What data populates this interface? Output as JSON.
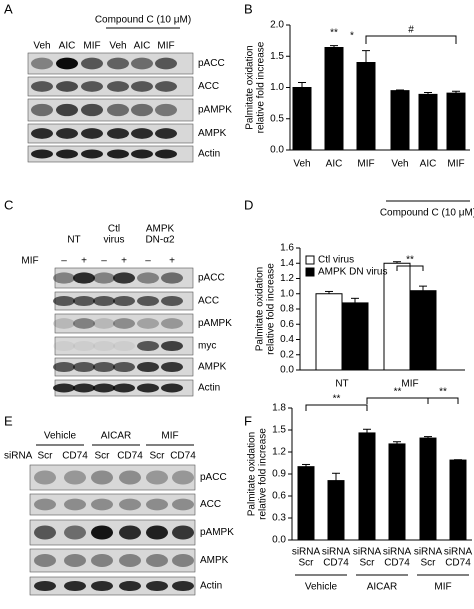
{
  "panel_labels": [
    "A",
    "B",
    "C",
    "D",
    "E",
    "F"
  ],
  "blot_A": {
    "lanes": [
      "Veh",
      "AIC",
      "MIF",
      "Veh",
      "AIC",
      "MIF"
    ],
    "group_label": "Compound C (10 μM)",
    "bands": [
      "pACC",
      "ACC",
      "pAMPK",
      "AMPK",
      "Actin"
    ]
  },
  "blot_C": {
    "headers": [
      [
        "NT"
      ],
      [
        "Ctl",
        "virus"
      ],
      [
        "AMPK",
        "DN-α2"
      ]
    ],
    "row_label": "MIF",
    "signs": [
      "–",
      "+",
      "–",
      "+",
      "–",
      "+"
    ],
    "bands": [
      "pACC",
      "ACC",
      "pAMPK",
      "myc",
      "AMPK",
      "Actin"
    ]
  },
  "blot_E": {
    "headers": [
      "Vehicle",
      "AICAR",
      "MIF"
    ],
    "row_label": "siRNA",
    "lanes": [
      "Scr",
      "CD74",
      "Scr",
      "CD74",
      "Scr",
      "CD74"
    ],
    "bands": [
      "pACC",
      "ACC",
      "pAMPK",
      "AMPK",
      "Actin"
    ]
  },
  "chart_data": [
    {
      "type": "bar",
      "y_label": [
        "Palmitate oxidation",
        "relative fold increase"
      ],
      "categories": [
        "Veh",
        "AIC",
        "MIF",
        "Veh",
        "AIC",
        "MIF"
      ],
      "values": [
        1.0,
        1.64,
        1.4,
        0.95,
        0.89,
        0.91
      ],
      "errors": [
        0.08,
        0.03,
        0.19,
        0.01,
        0.03,
        0.03
      ],
      "color": "#000000",
      "ylim": [
        0,
        2
      ],
      "yticks": [
        {
          "value": 0,
          "label": "0.0"
        },
        {
          "value": 0.5,
          "label": "0.5"
        },
        {
          "value": 1,
          "label": "1.0"
        },
        {
          "value": 1.5,
          "label": "1.5"
        },
        {
          "value": 2,
          "label": "2.0"
        }
      ],
      "group_label": "Compound C (10 μM)",
      "annotations": [
        "**",
        "*",
        "#"
      ]
    },
    {
      "type": "grouped_bar",
      "y_label": [
        "Palmitate oxidation",
        "relative fold increase"
      ],
      "categories": [
        "NT",
        "MIF"
      ],
      "series": [
        {
          "name": "Ctl virus",
          "color": "#ffffff",
          "values": [
            1.0,
            1.4
          ],
          "errors": [
            0.03,
            0.02
          ]
        },
        {
          "name": "AMPK DN virus",
          "color": "#000000",
          "values": [
            0.88,
            1.04
          ],
          "errors": [
            0.06,
            0.06
          ]
        }
      ],
      "ylim": [
        0,
        1.6
      ],
      "yticks": [
        {
          "value": 0,
          "label": "0.0"
        },
        {
          "value": 0.2,
          "label": "0.2"
        },
        {
          "value": 0.4,
          "label": "0.4"
        },
        {
          "value": 0.6,
          "label": "0.6"
        },
        {
          "value": 0.8,
          "label": "0.8"
        },
        {
          "value": 1,
          "label": "1.0"
        },
        {
          "value": 1.2,
          "label": "1.2"
        },
        {
          "value": 1.4,
          "label": "1.4"
        },
        {
          "value": 1.6,
          "label": "1.6"
        }
      ],
      "legend": "top-left",
      "annotations": [
        "**"
      ]
    },
    {
      "type": "bar",
      "y_label": [
        "Palmitate oxidation",
        "relative fold increase"
      ],
      "categories": [
        [
          "siRNA",
          "Scr"
        ],
        [
          "siRNA",
          "CD74"
        ],
        [
          "siRNA",
          "Scr"
        ],
        [
          "siRNA",
          "CD74"
        ],
        [
          "siRNA",
          "Scr"
        ],
        [
          "siRNA",
          "CD74"
        ]
      ],
      "values": [
        1.0,
        0.81,
        1.46,
        1.31,
        1.39,
        1.09
      ],
      "errors": [
        0.03,
        0.1,
        0.05,
        0.03,
        0.02,
        0.005
      ],
      "color": "#000000",
      "ylim": [
        0,
        1.8
      ],
      "yticks": [
        {
          "value": 0,
          "label": "0.0"
        },
        {
          "value": 0.3,
          "label": "0.3"
        },
        {
          "value": 0.6,
          "label": "0.6"
        },
        {
          "value": 0.9,
          "label": "0.9"
        },
        {
          "value": 1.2,
          "label": "1.2"
        },
        {
          "value": 1.5,
          "label": "1.5"
        },
        {
          "value": 1.8,
          "label": "1.8"
        }
      ],
      "groups": [
        "Vehicle",
        "AICAR",
        "MIF"
      ],
      "annotations": [
        "**",
        "**",
        "**"
      ]
    }
  ]
}
